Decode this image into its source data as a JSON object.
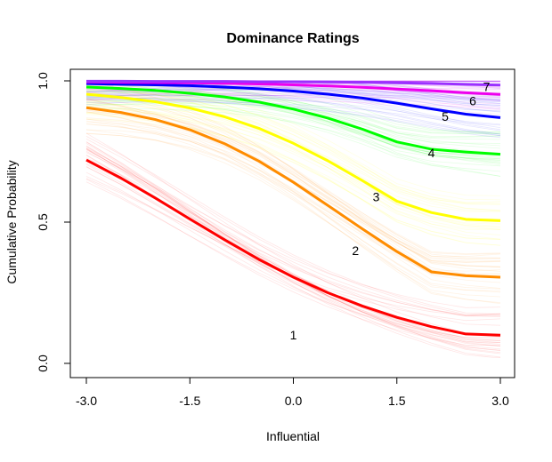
{
  "chart_data": {
    "type": "line",
    "title": "Dominance Ratings",
    "xlabel": "Influential",
    "ylabel": "Cumulative Probability",
    "xlim": [
      -3.0,
      3.0
    ],
    "ylim": [
      0.0,
      1.0
    ],
    "x_ticks": [
      -3.0,
      -1.5,
      0.0,
      1.5,
      3.0
    ],
    "x_tick_labels": [
      "-3.0",
      "-1.5",
      "0.0",
      "1.5",
      "3.0"
    ],
    "y_ticks": [
      0.0,
      0.5,
      1.0
    ],
    "y_tick_labels": [
      "0.0",
      "0.5",
      "1.0"
    ],
    "grid": false,
    "x": [
      -3.0,
      -2.5,
      -2.0,
      -1.5,
      -1.0,
      -0.5,
      0.0,
      0.5,
      1.0,
      1.5,
      2.0,
      2.5,
      3.0
    ],
    "series": [
      {
        "label": "1",
        "color": "#ff0000",
        "label_pos": [
          0.0,
          0.1
        ],
        "values": [
          0.72,
          0.656,
          0.585,
          0.511,
          0.438,
          0.368,
          0.305,
          0.25,
          0.203,
          0.163,
          0.13,
          0.104,
          0.1
        ]
      },
      {
        "label": "2",
        "color": "#ff8c00",
        "label_pos": [
          0.9,
          0.4
        ],
        "values": [
          0.905,
          0.888,
          0.863,
          0.827,
          0.778,
          0.716,
          0.641,
          0.559,
          0.476,
          0.396,
          0.324,
          0.31,
          0.305
        ]
      },
      {
        "label": "3",
        "color": "#ffff00",
        "label_pos": [
          1.2,
          0.59
        ],
        "values": [
          0.953,
          0.941,
          0.926,
          0.904,
          0.873,
          0.832,
          0.779,
          0.717,
          0.647,
          0.574,
          0.534,
          0.51,
          0.505
        ]
      },
      {
        "label": "4",
        "color": "#00ff00",
        "label_pos": [
          2.0,
          0.745
        ],
        "values": [
          0.978,
          0.973,
          0.966,
          0.956,
          0.943,
          0.925,
          0.9,
          0.868,
          0.829,
          0.784,
          0.758,
          0.748,
          0.74
        ]
      },
      {
        "label": "5",
        "color": "#0000ff",
        "label_pos": [
          2.2,
          0.875
        ],
        "values": [
          0.99,
          0.988,
          0.986,
          0.983,
          0.978,
          0.972,
          0.964,
          0.953,
          0.939,
          0.921,
          0.901,
          0.882,
          0.87
        ]
      },
      {
        "label": "6",
        "color": "#ee00ee",
        "label_pos": [
          2.6,
          0.93
        ],
        "values": [
          0.996,
          0.995,
          0.994,
          0.993,
          0.991,
          0.989,
          0.986,
          0.982,
          0.977,
          0.971,
          0.965,
          0.958,
          0.952
        ]
      },
      {
        "label": "7",
        "color": "#9b30ff",
        "label_pos": [
          2.8,
          0.98
        ],
        "values": [
          0.999,
          0.999,
          0.998,
          0.998,
          0.998,
          0.997,
          0.997,
          0.996,
          0.995,
          0.993,
          0.991,
          0.988,
          0.985
        ]
      }
    ]
  }
}
